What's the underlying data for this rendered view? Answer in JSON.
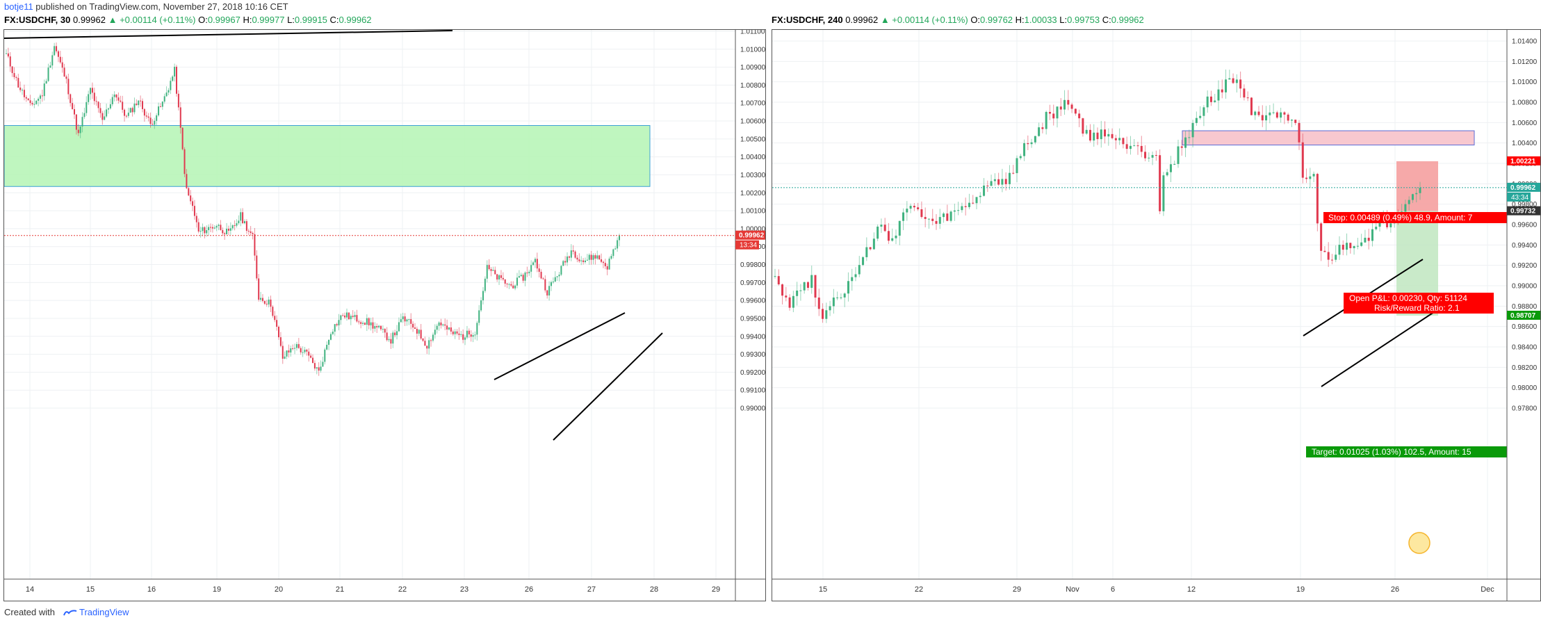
{
  "header": {
    "user": "botje11",
    "rest": " published on TradingView.com, November 27, 2018 10:16 CET"
  },
  "footer": {
    "created_with": "Created with",
    "brand": "TradingView"
  },
  "charts": [
    {
      "symbol": "FX:USDCHF, 30",
      "price": "0.99962",
      "change": "▲ +0.00114 (+0.11%)",
      "o_label": "O:",
      "o": "0.99967",
      "h_label": "H:",
      "h": "0.99977",
      "l_label": "L:",
      "l": "0.99915",
      "c_label": "C:",
      "c": "0.99962",
      "price_tag": "0.99962",
      "countdown": "13:34"
    },
    {
      "symbol": "FX:USDCHF, 240",
      "price": "0.99962",
      "change": "▲ +0.00114 (+0.11%)",
      "o_label": "O:",
      "o": "0.99762",
      "h_label": "H:",
      "h": "1.00033",
      "l_label": "L:",
      "l": "0.99753",
      "c_label": "C:",
      "c": "0.99962",
      "price_tag": "0.99962",
      "countdown": "43:34",
      "stop_tag": "1.00221",
      "target_tag": "0.98707",
      "entry_tag": "0.99732",
      "stop_label": "Stop: 0.00489 (0.49%) 48.9, Amount: 7",
      "open_label": "Open P&L: 0.00230, Qty: 51124",
      "rr_label": "Risk/Reward Ratio: 2.1",
      "target_label": "Target: 0.01025 (1.03%) 102.5, Amount: 15"
    }
  ],
  "chart_data": [
    {
      "type": "candlestick",
      "ylim": [
        0.9895,
        1.0118
      ],
      "ytick_labels": [
        "0.99000",
        "0.99100",
        "0.99200",
        "0.99300",
        "0.99400",
        "0.99500",
        "0.99600",
        "0.99700",
        "0.99800",
        "0.99900",
        "1.00000",
        "1.00100",
        "1.00200",
        "1.00300",
        "1.00400",
        "1.00500",
        "1.00600",
        "1.00700",
        "1.00800",
        "1.00900",
        "1.01000",
        "1.01100"
      ],
      "xtick_labels": [
        "14",
        "15",
        "16",
        "19",
        "20",
        "21",
        "22",
        "23",
        "26",
        "27",
        "28",
        "29"
      ],
      "path": [
        [
          0,
          1.0097
        ],
        [
          2,
          1.008
        ],
        [
          4,
          1.0068
        ],
        [
          6,
          1.0075
        ],
        [
          8,
          1.0102
        ],
        [
          10,
          1.0082
        ],
        [
          12,
          1.0052
        ],
        [
          14,
          1.0078
        ],
        [
          16,
          1.006
        ],
        [
          18,
          1.0076
        ],
        [
          20,
          1.0062
        ],
        [
          22,
          1.0072
        ],
        [
          24,
          1.0058
        ],
        [
          26,
          1.007
        ],
        [
          28,
          1.0088
        ],
        [
          29,
          1.0055
        ],
        [
          30,
          1.0021
        ],
        [
          31,
          1.0012
        ],
        [
          32,
          0.9998
        ],
        [
          35,
          1.0002
        ],
        [
          37,
          0.9997
        ],
        [
          39,
          1.0007
        ],
        [
          41,
          0.9995
        ],
        [
          42,
          0.9962
        ],
        [
          44,
          0.9958
        ],
        [
          45,
          0.9944
        ],
        [
          46,
          0.9928
        ],
        [
          48,
          0.9935
        ],
        [
          50,
          0.993
        ],
        [
          52,
          0.992
        ],
        [
          54,
          0.9943
        ],
        [
          56,
          0.9952
        ],
        [
          58,
          0.995
        ],
        [
          60,
          0.9948
        ],
        [
          62,
          0.9944
        ],
        [
          64,
          0.9938
        ],
        [
          66,
          0.995
        ],
        [
          68,
          0.9945
        ],
        [
          70,
          0.9935
        ],
        [
          72,
          0.9948
        ],
        [
          74,
          0.9942
        ],
        [
          76,
          0.994
        ],
        [
          78,
          0.9943
        ],
        [
          80,
          0.9978
        ],
        [
          82,
          0.9972
        ],
        [
          84,
          0.9968
        ],
        [
          86,
          0.9973
        ],
        [
          88,
          0.9982
        ],
        [
          90,
          0.9965
        ],
        [
          92,
          0.9976
        ],
        [
          94,
          0.9988
        ],
        [
          96,
          0.9982
        ],
        [
          98,
          0.9985
        ],
        [
          100,
          0.9979
        ],
        [
          102,
          0.9996
        ]
      ],
      "support_zone": [
        1.00235,
        1.00575
      ],
      "current_price": 0.99962
    },
    {
      "type": "candlestick",
      "ylim": [
        0.9772,
        1.0152
      ],
      "ytick_labels": [
        "0.97800",
        "0.98000",
        "0.98200",
        "0.98400",
        "0.98600",
        "0.98800",
        "0.99000",
        "0.99200",
        "0.99400",
        "0.99600",
        "0.99800",
        "1.00000",
        "1.00200",
        "1.00400",
        "1.00600",
        "1.00800",
        "1.01000",
        "1.01200",
        "1.01400"
      ],
      "xtick_labels": [
        "15",
        "22",
        "29",
        "Nov",
        "6",
        "12",
        "19",
        "26",
        "Dec"
      ],
      "path": [
        [
          0,
          0.9912
        ],
        [
          3,
          0.988
        ],
        [
          5,
          0.99
        ],
        [
          7,
          0.9905
        ],
        [
          9,
          0.987
        ],
        [
          11,
          0.9888
        ],
        [
          14,
          0.99
        ],
        [
          16,
          0.9918
        ],
        [
          18,
          0.994
        ],
        [
          20,
          0.9958
        ],
        [
          22,
          0.9945
        ],
        [
          24,
          0.9972
        ],
        [
          26,
          0.9975
        ],
        [
          28,
          0.9965
        ],
        [
          30,
          0.996
        ],
        [
          32,
          0.9968
        ],
        [
          34,
          0.9972
        ],
        [
          36,
          0.998
        ],
        [
          38,
          0.999
        ],
        [
          40,
          1.0005
        ],
        [
          42,
          1.0
        ],
        [
          44,
          1.001
        ],
        [
          46,
          1.0038
        ],
        [
          48,
          1.0045
        ],
        [
          50,
          1.0065
        ],
        [
          52,
          1.007
        ],
        [
          54,
          1.0082
        ],
        [
          56,
          1.006
        ],
        [
          58,
          1.0042
        ],
        [
          60,
          1.0052
        ],
        [
          62,
          1.0045
        ],
        [
          64,
          1.0038
        ],
        [
          66,
          1.004
        ],
        [
          68,
          1.003
        ],
        [
          70,
          1.003
        ],
        [
          71,
          0.9975
        ],
        [
          72,
          1.0005
        ],
        [
          74,
          1.0025
        ],
        [
          76,
          1.0045
        ],
        [
          78,
          1.0062
        ],
        [
          80,
          1.008
        ],
        [
          82,
          1.009
        ],
        [
          84,
          1.0105
        ],
        [
          86,
          1.0095
        ],
        [
          88,
          1.0072
        ],
        [
          90,
          1.0068
        ],
        [
          92,
          1.007
        ],
        [
          94,
          1.0062
        ],
        [
          96,
          1.0055
        ],
        [
          97,
          1.0035
        ],
        [
          98,
          1.0
        ],
        [
          100,
          1.001
        ],
        [
          101,
          0.996
        ],
        [
          102,
          0.993
        ],
        [
          104,
          0.9928
        ],
        [
          106,
          0.9938
        ],
        [
          108,
          0.9942
        ],
        [
          110,
          0.9946
        ],
        [
          112,
          0.9955
        ],
        [
          114,
          0.9962
        ],
        [
          116,
          0.997
        ],
        [
          118,
          0.9988
        ],
        [
          120,
          0.9996
        ]
      ],
      "resistance_zone": [
        1.0038,
        1.0052
      ],
      "current_price": 0.99962,
      "stop": 1.00221,
      "entry": 0.99732,
      "target": 0.98707
    }
  ]
}
